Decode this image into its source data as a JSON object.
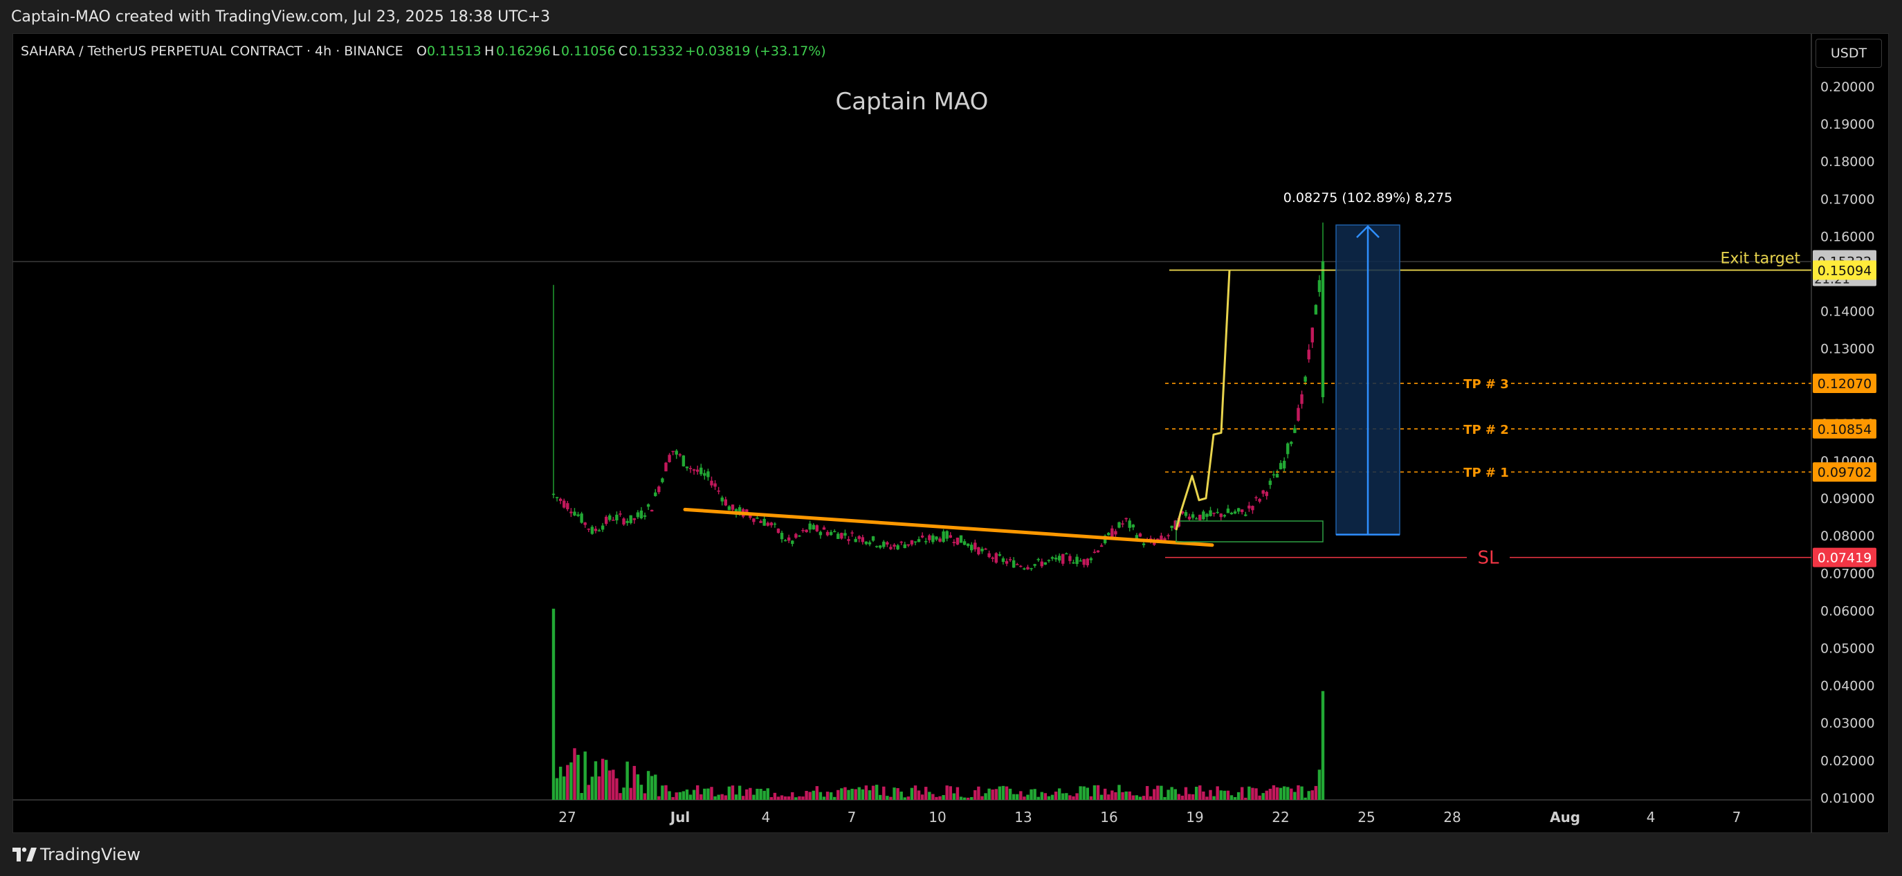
{
  "header": {
    "attribution": "Captain-MAO created with TradingView.com, Jul 23, 2025 18:38 UTC+3"
  },
  "footer": {
    "brand": "TradingView"
  },
  "symbol": {
    "name": "SAHARA / TetherUS PERPETUAL CONTRACT · 4h · BINANCE",
    "o_label": "O",
    "o": "0.11513",
    "h_label": "H",
    "h": "0.16296",
    "l_label": "L",
    "l": "0.11056",
    "c_label": "C",
    "c": "0.15332",
    "change": "+0.03819 (+33.17%)"
  },
  "currency": "USDT",
  "watermark": "Captain MAO",
  "colors": {
    "up": "#22a834",
    "down": "#c2185b",
    "trendline": "#ff9800",
    "exit": "#e8d44d",
    "tp": "#ff9800",
    "sl": "#f23645",
    "measure": "#2f8fff",
    "last_price_bg": "#c6c6c6",
    "exit_bg": "#ffeb3b"
  },
  "chart_data": {
    "type": "candlestick",
    "title": "Captain MAO",
    "x_ticks": [
      "27",
      "Jul",
      "4",
      "7",
      "10",
      "13",
      "16",
      "19",
      "22",
      "25",
      "28",
      "Aug",
      "4",
      "7"
    ],
    "y_ticks": [
      "0.20000",
      "0.19000",
      "0.18000",
      "0.17000",
      "0.16000",
      "0.15000",
      "0.14000",
      "0.13000",
      "0.12000",
      "0.11000",
      "0.10000",
      "0.09000",
      "0.08000",
      "0.07000",
      "0.06000",
      "0.05000",
      "0.04000",
      "0.03000",
      "0.02000",
      "0.01000"
    ],
    "ylim": [
      0.01,
      0.2
    ],
    "price_path": [
      [
        0.09,
        0.092,
        0.088,
        0.091
      ],
      [
        0.091,
        0.094,
        0.085,
        0.087
      ],
      [
        0.087,
        0.089,
        0.079,
        0.081
      ],
      [
        0.081,
        0.086,
        0.08,
        0.085
      ],
      [
        0.085,
        0.088,
        0.083,
        0.084
      ],
      [
        0.084,
        0.09,
        0.084,
        0.088
      ],
      [
        0.088,
        0.108,
        0.087,
        0.103
      ],
      [
        0.103,
        0.106,
        0.096,
        0.098
      ],
      [
        0.098,
        0.1,
        0.092,
        0.095
      ],
      [
        0.095,
        0.096,
        0.085,
        0.087
      ],
      [
        0.087,
        0.088,
        0.084,
        0.0855
      ],
      [
        0.0855,
        0.086,
        0.081,
        0.083
      ],
      [
        0.083,
        0.084,
        0.077,
        0.078
      ],
      [
        0.078,
        0.083,
        0.077,
        0.082
      ],
      [
        0.082,
        0.084,
        0.08,
        0.081
      ],
      [
        0.081,
        0.083,
        0.079,
        0.08
      ],
      [
        0.08,
        0.082,
        0.078,
        0.079
      ],
      [
        0.079,
        0.08,
        0.076,
        0.077
      ],
      [
        0.077,
        0.079,
        0.076,
        0.078
      ],
      [
        0.078,
        0.08,
        0.077,
        0.079
      ],
      [
        0.079,
        0.082,
        0.078,
        0.08
      ],
      [
        0.08,
        0.081,
        0.077,
        0.078
      ],
      [
        0.078,
        0.079,
        0.074,
        0.075
      ],
      [
        0.075,
        0.076,
        0.072,
        0.073
      ],
      [
        0.073,
        0.074,
        0.071,
        0.072
      ],
      [
        0.072,
        0.074,
        0.071,
        0.073
      ],
      [
        0.073,
        0.075,
        0.072,
        0.074
      ],
      [
        0.074,
        0.076,
        0.072,
        0.073
      ],
      [
        0.073,
        0.08,
        0.073,
        0.079
      ],
      [
        0.079,
        0.094,
        0.078,
        0.084
      ],
      [
        0.084,
        0.085,
        0.077,
        0.078
      ],
      [
        0.078,
        0.08,
        0.077,
        0.079
      ],
      [
        0.079,
        0.087,
        0.079,
        0.086
      ],
      [
        0.086,
        0.088,
        0.084,
        0.085
      ],
      [
        0.085,
        0.089,
        0.084,
        0.086
      ],
      [
        0.086,
        0.087,
        0.084,
        0.086
      ],
      [
        0.086,
        0.092,
        0.085,
        0.091
      ],
      [
        0.091,
        0.101,
        0.09,
        0.099
      ],
      [
        0.099,
        0.123,
        0.098,
        0.117
      ],
      [
        0.117,
        0.163,
        0.115,
        0.1533
      ]
    ],
    "volume_peaks": [
      {
        "x": "27",
        "value": 0.0605
      },
      {
        "x": "22",
        "value": 0.0385
      }
    ],
    "trendline": {
      "from": [
        "Jul",
        0.087
      ],
      "to": [
        "19",
        0.0775
      ]
    },
    "levels": [
      {
        "label": "Exit target",
        "value": 0.15094
      },
      {
        "label": "TP # 3",
        "value": 0.1207
      },
      {
        "label": "TP # 2",
        "value": 0.10854
      },
      {
        "label": "TP # 1",
        "value": 0.09702
      },
      {
        "label": "SL",
        "value": 0.07419
      }
    ],
    "price_labels": {
      "last": "0.15332",
      "countdown": "21:21",
      "exit": "0.15094",
      "tp3": "0.12070",
      "tp2": "0.10854",
      "tp1": "0.09702",
      "sl": "0.07419"
    },
    "measure": {
      "label": "0.08275 (102.89%) 8,275",
      "from": 0.0803,
      "to": 0.163
    },
    "projection": [
      [
        "18",
        0.0815
      ],
      [
        "18",
        0.086
      ],
      [
        "19",
        0.096
      ],
      [
        "19",
        0.0895
      ],
      [
        "20",
        0.09
      ],
      [
        "20",
        0.107
      ],
      [
        "20",
        0.1075
      ],
      [
        "21",
        0.151
      ]
    ]
  }
}
